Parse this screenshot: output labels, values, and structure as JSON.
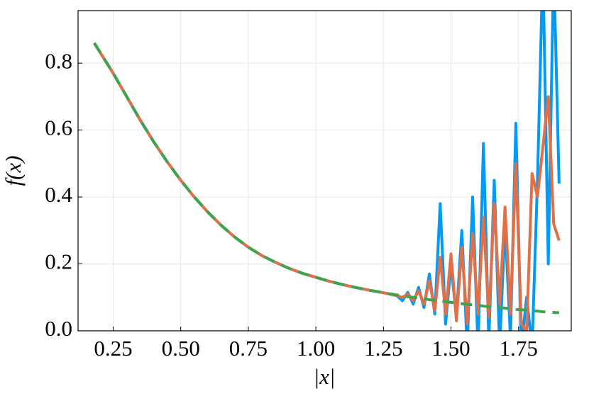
{
  "chart_data": {
    "type": "line",
    "xlabel": "|x|",
    "ylabel": "f(x)",
    "x": [
      0.18,
      0.25,
      0.3,
      0.35,
      0.4,
      0.45,
      0.5,
      0.55,
      0.6,
      0.65,
      0.7,
      0.75,
      0.8,
      0.85,
      0.9,
      0.95,
      1.0,
      1.05,
      1.1,
      1.15,
      1.2,
      1.25,
      1.3,
      1.32,
      1.34,
      1.36,
      1.38,
      1.4,
      1.42,
      1.44,
      1.46,
      1.48,
      1.5,
      1.52,
      1.54,
      1.56,
      1.58,
      1.6,
      1.62,
      1.64,
      1.66,
      1.68,
      1.7,
      1.72,
      1.74,
      1.76,
      1.78,
      1.8,
      1.82,
      1.84,
      1.86,
      1.88,
      1.9
    ],
    "series": [
      {
        "color": "#009af9",
        "style": "solid",
        "values": [
          0.86,
          0.77,
          0.7,
          0.63,
          0.565,
          0.505,
          0.45,
          0.4,
          0.355,
          0.315,
          0.28,
          0.25,
          0.225,
          0.205,
          0.187,
          0.172,
          0.16,
          0.148,
          0.138,
          0.129,
          0.121,
          0.114,
          0.105,
          0.09,
          0.115,
          0.08,
          0.13,
          0.07,
          0.17,
          0.05,
          0.38,
          0.02,
          0.2,
          0.04,
          0.3,
          -0.05,
          0.4,
          -0.05,
          0.56,
          -0.03,
          0.45,
          -0.05,
          0.32,
          -0.02,
          0.62,
          -0.05,
          0.1,
          -0.05,
          0.45,
          1.1,
          0.2,
          1.1,
          0.44
        ]
      },
      {
        "color": "#e26f46",
        "style": "solid",
        "values": [
          0.86,
          0.77,
          0.7,
          0.63,
          0.565,
          0.505,
          0.45,
          0.4,
          0.355,
          0.315,
          0.28,
          0.25,
          0.225,
          0.205,
          0.187,
          0.172,
          0.16,
          0.148,
          0.138,
          0.129,
          0.121,
          0.114,
          0.105,
          0.1,
          0.11,
          0.09,
          0.12,
          0.08,
          0.15,
          0.06,
          0.22,
          0.05,
          0.23,
          0.03,
          0.25,
          0.02,
          0.29,
          0.05,
          0.34,
          0.04,
          0.38,
          0.08,
          0.37,
          0.05,
          0.5,
          0.02,
          0.0,
          0.47,
          0.4,
          0.55,
          0.7,
          0.32,
          0.27
        ]
      },
      {
        "color": "#3da44d",
        "style": "dash",
        "values": [
          0.86,
          0.77,
          0.7,
          0.63,
          0.565,
          0.505,
          0.45,
          0.4,
          0.355,
          0.315,
          0.28,
          0.25,
          0.225,
          0.205,
          0.187,
          0.172,
          0.16,
          0.148,
          0.138,
          0.129,
          0.121,
          0.114,
          0.107,
          0.105,
          0.102,
          0.1,
          0.098,
          0.096,
          0.093,
          0.091,
          0.089,
          0.087,
          0.085,
          0.083,
          0.081,
          0.079,
          0.078,
          0.076,
          0.074,
          0.072,
          0.071,
          0.069,
          0.068,
          0.066,
          0.064,
          0.063,
          0.062,
          0.06,
          0.059,
          0.057,
          0.056,
          0.055,
          0.054
        ]
      }
    ],
    "xlim": [
      0.12,
      1.945
    ],
    "ylim": [
      0,
      0.957
    ],
    "xticks": [
      0.25,
      {
        "value": 0.5,
        "label": "0.50"
      },
      0.75,
      {
        "value": 1.0,
        "label": "1.00"
      },
      1.25,
      {
        "value": 1.5,
        "label": "1.50"
      },
      1.75
    ],
    "yticks": [
      {
        "value": 0,
        "label": "0.0"
      },
      0.2,
      0.4,
      0.6,
      0.8
    ],
    "grid": true
  }
}
